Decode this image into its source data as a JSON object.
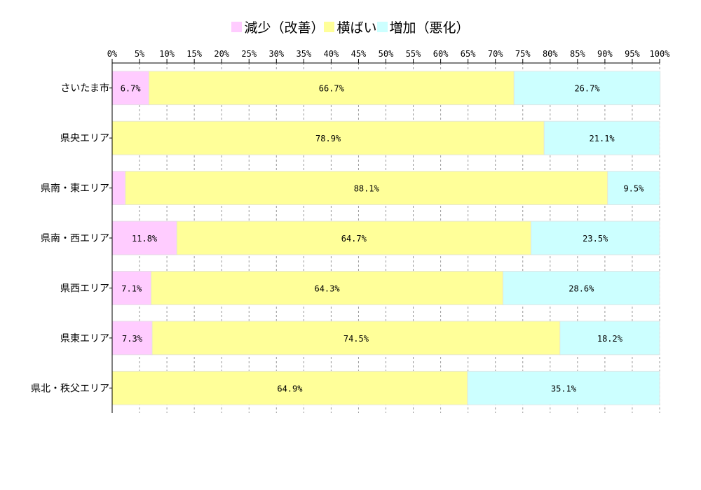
{
  "chart_data": {
    "type": "bar",
    "orientation": "horizontal",
    "stacked": true,
    "title": "",
    "xlabel": "",
    "ylabel": "",
    "xlim": [
      0,
      100
    ],
    "x_ticks": [
      "0%",
      "5%",
      "10%",
      "15%",
      "20%",
      "25%",
      "30%",
      "35%",
      "40%",
      "45%",
      "50%",
      "55%",
      "60%",
      "65%",
      "70%",
      "75%",
      "80%",
      "85%",
      "90%",
      "95%",
      "100%"
    ],
    "grid": "vertical-dashed",
    "legend_position": "top",
    "categories": [
      "さいたま市",
      "県央エリア",
      "県南・東エリア",
      "県南・西エリア",
      "県西エリア",
      "県東エリア",
      "県北・秩父エリア"
    ],
    "series": [
      {
        "name": "減少（改善）",
        "color": "#ffccff",
        "values": [
          6.7,
          0,
          2.4,
          11.8,
          7.1,
          7.3,
          0
        ],
        "labels": [
          "6.7%",
          "",
          "",
          "11.8%",
          "7.1%",
          "7.3%",
          ""
        ]
      },
      {
        "name": "横ばい",
        "color": "#ffff99",
        "values": [
          66.7,
          78.9,
          88.1,
          64.7,
          64.3,
          74.5,
          64.9
        ],
        "labels": [
          "66.7%",
          "78.9%",
          "88.1%",
          "64.7%",
          "64.3%",
          "74.5%",
          "64.9%"
        ]
      },
      {
        "name": "増加（悪化）",
        "color": "#ccffff",
        "values": [
          26.7,
          21.1,
          9.5,
          23.5,
          28.6,
          18.2,
          35.1
        ],
        "labels": [
          "26.7%",
          "21.1%",
          "9.5%",
          "23.5%",
          "28.6%",
          "18.2%",
          "35.1%"
        ]
      }
    ]
  }
}
